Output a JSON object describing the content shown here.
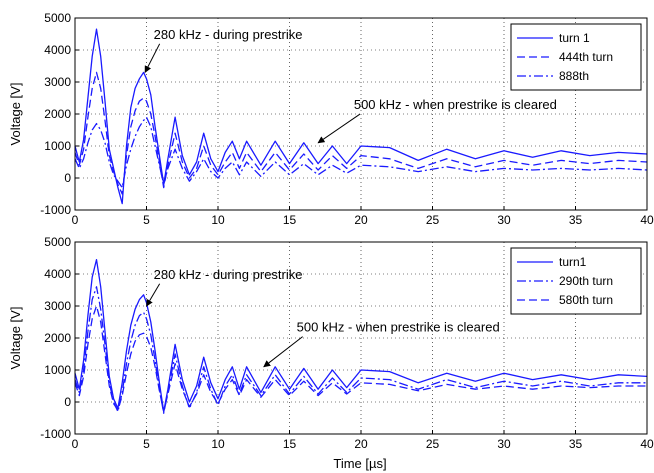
{
  "figure": {
    "xlabel": "Time [µs]"
  },
  "chart_data": [
    {
      "type": "line",
      "ylabel": "Voltage [V]",
      "xlim": [
        0,
        40
      ],
      "ylim": [
        -1000,
        5000
      ],
      "xticks": [
        "0",
        "5",
        "10",
        "15",
        "20",
        "25",
        "30",
        "35",
        "40"
      ],
      "yticks": [
        "-1000",
        "0",
        "1000",
        "2000",
        "3000",
        "4000",
        "5000"
      ],
      "grid": true,
      "legend_position": "top-right",
      "line_color": "#1a1aff",
      "series": [
        {
          "name": "turn 1",
          "style": "solid",
          "x": [
            0,
            0.3,
            0.6,
            0.9,
            1.2,
            1.5,
            1.8,
            2.1,
            2.4,
            2.7,
            3.0,
            3.3,
            3.6,
            3.9,
            4.2,
            4.5,
            4.8,
            5.0,
            5.3,
            5.6,
            5.9,
            6.2,
            6.5,
            7.0,
            7.5,
            8.0,
            8.5,
            9.0,
            9.5,
            10.0,
            10.5,
            11.0,
            11.5,
            12.0,
            13.0,
            14.0,
            15.0,
            16.0,
            17.0,
            18.0,
            19.0,
            20.0,
            22.0,
            24.0,
            26.0,
            28.0,
            30.0,
            32.0,
            34.0,
            36.0,
            38.0,
            40.0
          ],
          "y": [
            1000,
            500,
            1200,
            2500,
            3800,
            4650,
            3800,
            2400,
            900,
            300,
            -300,
            -800,
            1000,
            2200,
            2800,
            3100,
            3300,
            3100,
            2600,
            1600,
            700,
            -200,
            600,
            1900,
            700,
            100,
            500,
            1400,
            600,
            200,
            800,
            1150,
            600,
            1150,
            400,
            1150,
            450,
            1100,
            450,
            1000,
            450,
            1000,
            950,
            550,
            900,
            600,
            850,
            650,
            850,
            700,
            800,
            750
          ]
        },
        {
          "name": "444th turn",
          "style": "dashed",
          "x": [
            0,
            0.3,
            0.6,
            0.9,
            1.2,
            1.5,
            1.8,
            2.1,
            2.4,
            2.7,
            3.0,
            3.3,
            3.6,
            3.9,
            4.2,
            4.5,
            4.8,
            5.0,
            5.3,
            5.6,
            5.9,
            6.2,
            6.5,
            7.0,
            7.5,
            8.0,
            8.5,
            9.0,
            9.5,
            10.0,
            10.5,
            11.0,
            11.5,
            12.0,
            13.0,
            14.0,
            15.0,
            16.0,
            17.0,
            18.0,
            19.0,
            20.0,
            22.0,
            24.0,
            26.0,
            28.0,
            30.0,
            32.0,
            34.0,
            36.0,
            38.0,
            40.0
          ],
          "y": [
            800,
            400,
            900,
            1900,
            2800,
            3300,
            2800,
            1800,
            700,
            200,
            -200,
            -500,
            700,
            1600,
            2100,
            2400,
            2500,
            2400,
            2000,
            1300,
            500,
            -300,
            400,
            1400,
            500,
            0,
            300,
            1000,
            400,
            100,
            500,
            800,
            300,
            800,
            200,
            800,
            250,
            750,
            250,
            700,
            300,
            700,
            600,
            300,
            600,
            350,
            550,
            400,
            550,
            450,
            550,
            500
          ]
        },
        {
          "name": "888th",
          "style": "dashdot",
          "x": [
            0,
            0.3,
            0.6,
            0.9,
            1.2,
            1.5,
            1.8,
            2.1,
            2.4,
            2.7,
            3.0,
            3.3,
            3.6,
            3.9,
            4.2,
            4.5,
            4.8,
            5.0,
            5.3,
            5.6,
            5.9,
            6.2,
            6.5,
            7.0,
            7.5,
            8.0,
            8.5,
            9.0,
            9.5,
            10.0,
            10.5,
            11.0,
            11.5,
            12.0,
            13.0,
            14.0,
            15.0,
            16.0,
            17.0,
            18.0,
            19.0,
            20.0,
            22.0,
            24.0,
            26.0,
            28.0,
            30.0,
            32.0,
            34.0,
            36.0,
            38.0,
            40.0
          ],
          "y": [
            600,
            300,
            600,
            1100,
            1500,
            1700,
            1500,
            1100,
            500,
            100,
            -100,
            -300,
            400,
            900,
            1300,
            1600,
            1800,
            1900,
            1600,
            1000,
            400,
            -200,
            300,
            900,
            300,
            -100,
            200,
            600,
            200,
            0,
            300,
            500,
            100,
            500,
            50,
            500,
            100,
            450,
            100,
            400,
            150,
            400,
            350,
            200,
            350,
            200,
            300,
            250,
            300,
            250,
            300,
            250
          ]
        }
      ],
      "annotations": [
        {
          "text": "280 kHz - during prestrike",
          "x": 5.5,
          "y": 4350,
          "arrow_to": [
            4.9,
            3300
          ]
        },
        {
          "text": "500 kHz - when prestrike is cleared",
          "x": 19.5,
          "y": 2150,
          "arrow_to": [
            17.0,
            1100
          ]
        }
      ]
    },
    {
      "type": "line",
      "xlabel": "Time [µs]",
      "ylabel": "Voltage [V]",
      "xlim": [
        0,
        40
      ],
      "ylim": [
        -1000,
        5000
      ],
      "xticks": [
        "0",
        "5",
        "10",
        "15",
        "20",
        "25",
        "30",
        "35",
        "40"
      ],
      "yticks": [
        "-1000",
        "0",
        "1000",
        "2000",
        "3000",
        "4000",
        "5000"
      ],
      "grid": true,
      "legend_position": "top-right",
      "line_color": "#1a1aff",
      "series": [
        {
          "name": "turn1",
          "style": "solid",
          "x": [
            0,
            0.3,
            0.6,
            0.9,
            1.2,
            1.5,
            1.8,
            2.1,
            2.4,
            2.7,
            3.0,
            3.3,
            3.6,
            3.9,
            4.2,
            4.5,
            4.8,
            5.0,
            5.3,
            5.6,
            5.9,
            6.2,
            6.5,
            7.0,
            7.5,
            8.0,
            8.5,
            9.0,
            9.5,
            10.0,
            10.5,
            11.0,
            11.5,
            12.0,
            13.0,
            14.0,
            15.0,
            16.0,
            17.0,
            18.0,
            19.0,
            20.0,
            22.0,
            24.0,
            26.0,
            28.0,
            30.0,
            32.0,
            34.0,
            36.0,
            38.0,
            40.0
          ],
          "y": [
            900,
            400,
            1300,
            2700,
            3900,
            4450,
            3600,
            2200,
            800,
            100,
            -200,
            600,
            1600,
            2400,
            2900,
            3200,
            3350,
            3100,
            2500,
            1600,
            600,
            -300,
            400,
            1800,
            700,
            0,
            500,
            1400,
            600,
            100,
            700,
            1100,
            400,
            1100,
            300,
            1100,
            400,
            1050,
            400,
            1000,
            450,
            1000,
            950,
            600,
            900,
            650,
            900,
            700,
            850,
            700,
            850,
            800
          ]
        },
        {
          "name": "290th turn",
          "style": "dashdot",
          "x": [
            0,
            0.3,
            0.6,
            0.9,
            1.2,
            1.5,
            1.8,
            2.1,
            2.4,
            2.7,
            3.0,
            3.3,
            3.6,
            3.9,
            4.2,
            4.5,
            4.8,
            5.0,
            5.3,
            5.6,
            5.9,
            6.2,
            6.5,
            7.0,
            7.5,
            8.0,
            8.5,
            9.0,
            9.5,
            10.0,
            10.5,
            11.0,
            11.5,
            12.0,
            13.0,
            14.0,
            15.0,
            16.0,
            17.0,
            18.0,
            19.0,
            20.0,
            22.0,
            24.0,
            26.0,
            28.0,
            30.0,
            32.0,
            34.0,
            36.0,
            38.0,
            40.0
          ],
          "y": [
            700,
            300,
            1000,
            2200,
            3200,
            3600,
            2900,
            1800,
            600,
            0,
            -300,
            300,
            1200,
            1900,
            2400,
            2700,
            2800,
            2600,
            2100,
            1300,
            400,
            -350,
            300,
            1500,
            500,
            -200,
            300,
            1100,
            400,
            -100,
            500,
            850,
            250,
            850,
            200,
            850,
            250,
            800,
            250,
            750,
            300,
            750,
            700,
            400,
            700,
            450,
            650,
            500,
            650,
            500,
            600,
            600
          ]
        },
        {
          "name": "580th turn",
          "style": "dashed",
          "x": [
            0,
            0.3,
            0.6,
            0.9,
            1.2,
            1.5,
            1.8,
            2.1,
            2.4,
            2.7,
            3.0,
            3.3,
            3.6,
            3.9,
            4.2,
            4.5,
            4.8,
            5.0,
            5.3,
            5.6,
            5.9,
            6.2,
            6.5,
            7.0,
            7.5,
            8.0,
            8.5,
            9.0,
            9.5,
            10.0,
            10.5,
            11.0,
            11.5,
            12.0,
            13.0,
            14.0,
            15.0,
            16.0,
            17.0,
            18.0,
            19.0,
            20.0,
            22.0,
            24.0,
            26.0,
            28.0,
            30.0,
            32.0,
            34.0,
            36.0,
            38.0,
            40.0
          ],
          "y": [
            600,
            200,
            800,
            1800,
            2600,
            3000,
            2500,
            1500,
            500,
            -50,
            -250,
            200,
            900,
            1500,
            1900,
            2100,
            2150,
            2050,
            1700,
            1100,
            350,
            -300,
            250,
            1200,
            400,
            -150,
            250,
            850,
            300,
            -50,
            400,
            700,
            200,
            700,
            150,
            700,
            200,
            650,
            200,
            600,
            250,
            600,
            550,
            350,
            550,
            400,
            500,
            400,
            500,
            450,
            500,
            500
          ]
        }
      ],
      "annotations": [
        {
          "text": "280 kHz - during prestrike",
          "x": 5.5,
          "y": 3850,
          "arrow_to": [
            5.0,
            3000
          ]
        },
        {
          "text": "500 kHz - when prestrike is cleared",
          "x": 15.5,
          "y": 2200,
          "arrow_to": [
            13.2,
            1100
          ]
        }
      ]
    }
  ]
}
